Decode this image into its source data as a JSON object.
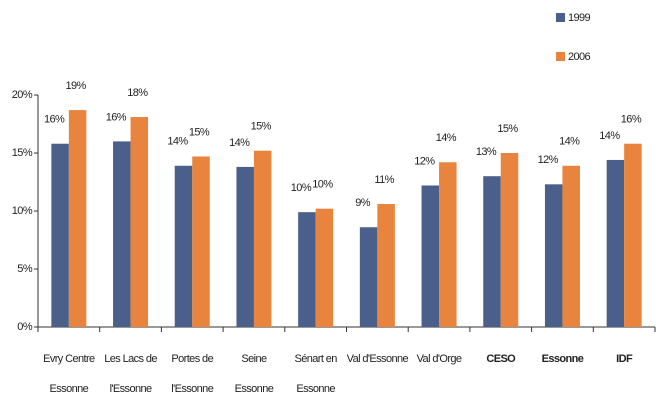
{
  "chart_data": {
    "type": "bar",
    "categories": [
      "Evry Centre Essonne",
      "Les Lacs de l'Essonne",
      "Portes de l'Essonne",
      "Seine Essonne",
      "Sénart en Essonne",
      "Val d'Essonne",
      "Val d'Orge",
      "CESO",
      "Essonne",
      "IDF"
    ],
    "series": [
      {
        "name": "1999",
        "color": "#4b5f8b",
        "values": [
          15.8,
          16.0,
          13.9,
          13.8,
          9.9,
          8.6,
          12.2,
          13.0,
          12.3,
          14.4
        ],
        "value_labels": [
          "16%",
          "16%",
          "14%",
          "14%",
          "10%",
          "9%",
          "12%",
          "13%",
          "12%",
          "14%"
        ]
      },
      {
        "name": "2006",
        "color": "#e8843d",
        "values": [
          18.7,
          18.1,
          14.7,
          15.2,
          10.2,
          10.6,
          14.2,
          15.0,
          13.9,
          15.8
        ],
        "value_labels": [
          "19%",
          "18%",
          "15%",
          "15%",
          "10%",
          "11%",
          "14%",
          "15%",
          "14%",
          "16%"
        ]
      }
    ],
    "ylim": [
      0,
      20
    ],
    "yticks": [
      {
        "value": 0,
        "label": "0%"
      },
      {
        "value": 5,
        "label": "5%"
      },
      {
        "value": 10,
        "label": "10%"
      },
      {
        "value": 15,
        "label": "15%"
      },
      {
        "value": 20,
        "label": "20%"
      }
    ],
    "legend": "top-right"
  }
}
